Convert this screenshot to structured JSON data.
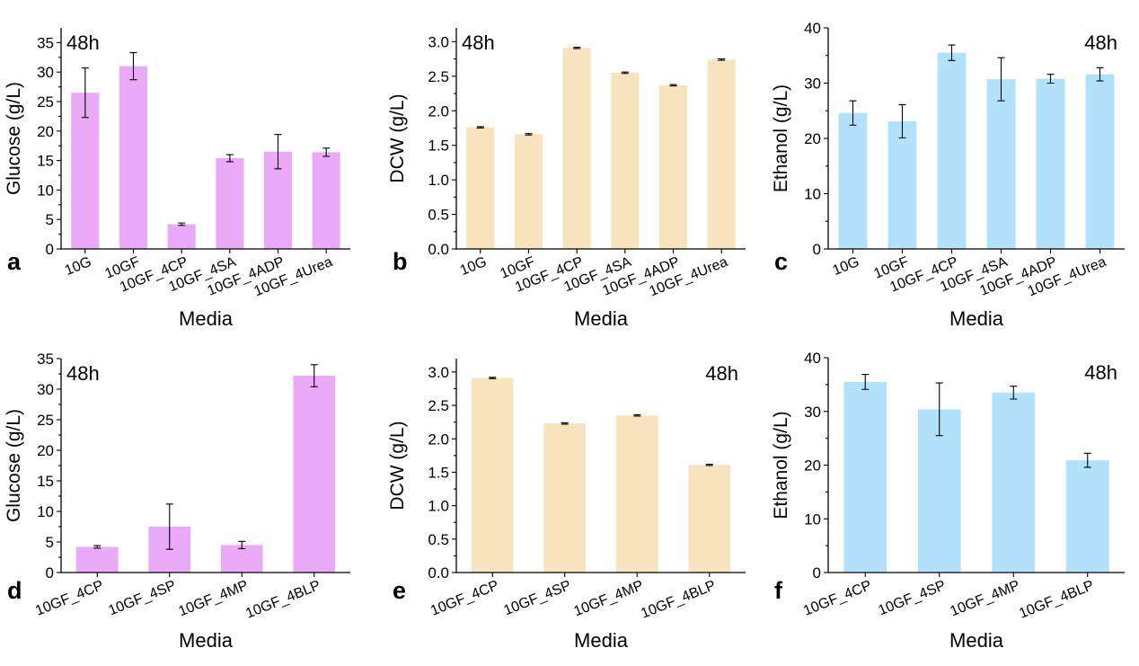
{
  "xlabel": "Media",
  "colors": {
    "glucose": "#ebaaf7",
    "dcw": "#f7e4be",
    "ethanol": "#b2e2fb"
  },
  "chart_data": [
    {
      "type": "bar",
      "panel_letter": "a",
      "time_label": "48h",
      "time_label_position": "top-left",
      "color_key": "glucose",
      "categories": [
        "10G",
        "10GF",
        "10GF_4CP",
        "10GF_4SA",
        "10GF_4ADP",
        "10GF_4Urea"
      ],
      "values": [
        26.5,
        31.0,
        4.2,
        15.4,
        16.5,
        16.4
      ],
      "errors": [
        4.2,
        2.3,
        0.2,
        0.6,
        2.9,
        0.7
      ],
      "xlabel": "Media",
      "ylabel": "Glucose (g/L)",
      "ylim": [
        0,
        37.5
      ],
      "yticks": [
        "0",
        "5",
        "10",
        "15",
        "20",
        "25",
        "30",
        "35"
      ],
      "grid": false
    },
    {
      "type": "bar",
      "panel_letter": "b",
      "time_label": "48h",
      "time_label_position": "top-left",
      "color_key": "dcw",
      "categories": [
        "10G",
        "10GF",
        "10GF_4CP",
        "10GF_4SA",
        "10GF_4ADP",
        "10GF_4Urea"
      ],
      "values": [
        1.76,
        1.66,
        2.91,
        2.55,
        2.37,
        2.74
      ],
      "errors": [
        0.01,
        0.01,
        0.01,
        0.01,
        0.01,
        0.01
      ],
      "xlabel": "Media",
      "ylabel": "DCW (g/L)",
      "ylim": [
        0,
        3.2
      ],
      "yticks": [
        "0.0",
        "0.5",
        "1.0",
        "1.5",
        "2.0",
        "2.5",
        "3.0"
      ],
      "grid": false
    },
    {
      "type": "bar",
      "panel_letter": "c",
      "time_label": "48h",
      "time_label_position": "top-right",
      "color_key": "ethanol",
      "categories": [
        "10G",
        "10GF",
        "10GF_4CP",
        "10GF_4SA",
        "10GF_4ADP",
        "10GF_4Urea"
      ],
      "values": [
        24.6,
        23.1,
        35.5,
        30.7,
        30.8,
        31.6
      ],
      "errors": [
        2.2,
        3.0,
        1.4,
        3.9,
        0.8,
        1.2
      ],
      "xlabel": "Media",
      "ylabel": "Ethanol (g/L)",
      "ylim": [
        0,
        40
      ],
      "yticks": [
        "0",
        "10",
        "20",
        "30",
        "40"
      ],
      "grid": false
    },
    {
      "type": "bar",
      "panel_letter": "d",
      "time_label": "48h",
      "time_label_position": "top-left",
      "color_key": "glucose",
      "categories": [
        "10GF_4CP",
        "10GF_4SP",
        "10GF_4MP",
        "10GF_4BLP"
      ],
      "values": [
        4.2,
        7.5,
        4.5,
        32.2
      ],
      "errors": [
        0.2,
        3.7,
        0.6,
        1.8
      ],
      "xlabel": "Media",
      "ylabel": "Glucose (g/L)",
      "ylim": [
        0,
        35
      ],
      "yticks": [
        "0",
        "5",
        "10",
        "15",
        "20",
        "25",
        "30",
        "35"
      ],
      "grid": false
    },
    {
      "type": "bar",
      "panel_letter": "e",
      "time_label": "48h",
      "time_label_position": "top-right",
      "color_key": "dcw",
      "categories": [
        "10GF_4CP",
        "10GF_4SP",
        "10GF_4MP",
        "10GF_4BLP"
      ],
      "values": [
        2.91,
        2.23,
        2.35,
        1.61
      ],
      "errors": [
        0.01,
        0.01,
        0.01,
        0.01
      ],
      "xlabel": "Media",
      "ylabel": "DCW (g/L)",
      "ylim": [
        0,
        3.2
      ],
      "yticks": [
        "0.0",
        "0.5",
        "1.0",
        "1.5",
        "2.0",
        "2.5",
        "3.0"
      ],
      "grid": false
    },
    {
      "type": "bar",
      "panel_letter": "f",
      "time_label": "48h",
      "time_label_position": "top-right",
      "color_key": "ethanol",
      "categories": [
        "10GF_4CP",
        "10GF_4SP",
        "10GF_4MP",
        "10GF_4BLP"
      ],
      "values": [
        35.5,
        30.4,
        33.5,
        20.9
      ],
      "errors": [
        1.4,
        4.9,
        1.2,
        1.3
      ],
      "xlabel": "Media",
      "ylabel": "Ethanol (g/L)",
      "ylim": [
        0,
        40
      ],
      "yticks": [
        "0",
        "10",
        "20",
        "30",
        "40"
      ],
      "grid": false
    }
  ]
}
